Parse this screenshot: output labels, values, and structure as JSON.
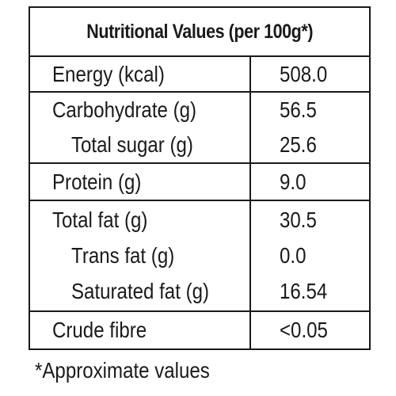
{
  "table": {
    "title": "Nutritional Values (per 100g*)",
    "groups": [
      {
        "rows": [
          {
            "name": "Energy (kcal)",
            "value": "508.0"
          }
        ]
      },
      {
        "rows": [
          {
            "name": "Carbohydrate (g)",
            "value": "56.5"
          },
          {
            "name": "Total sugar (g)",
            "value": "25.6"
          }
        ]
      },
      {
        "rows": [
          {
            "name": "Protein (g)",
            "value": "9.0"
          }
        ]
      },
      {
        "rows": [
          {
            "name": "Total fat (g)",
            "value": "30.5"
          },
          {
            "name": "Trans fat (g)",
            "value": "0.0"
          },
          {
            "name": "Saturated fat (g)",
            "value": "16.54"
          }
        ]
      },
      {
        "rows": [
          {
            "name": "Crude fibre",
            "value": "<0.05"
          }
        ]
      }
    ]
  },
  "footnote": "*Approximate values"
}
